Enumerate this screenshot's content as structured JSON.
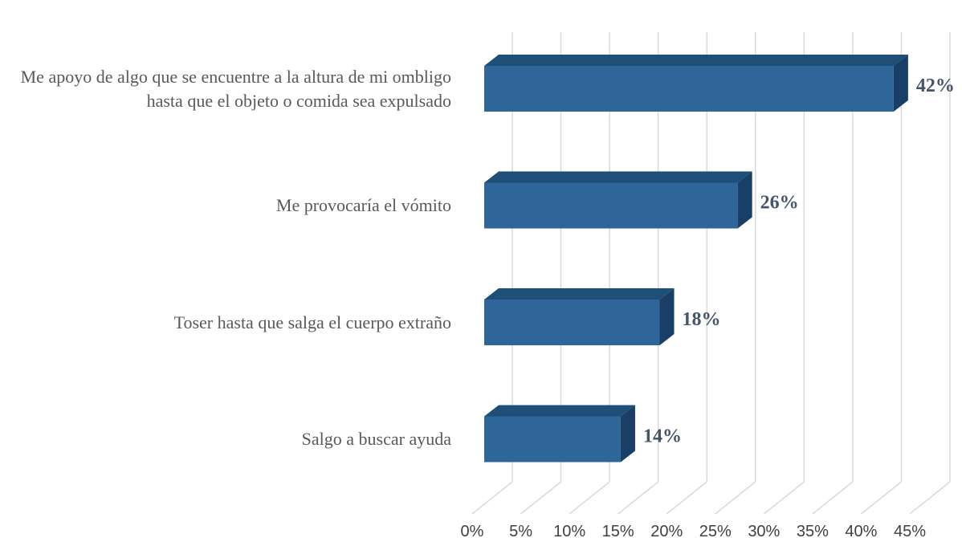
{
  "chart_data": {
    "type": "bar3d_horizontal",
    "categories": [
      "Me apoyo de algo que se encuentre a la altura de mi ombligo hasta que el objeto o comida sea expulsado",
      "Me provocaría el vómito",
      "Toser hasta que salga el cuerpo extraño",
      "Salgo a buscar ayuda"
    ],
    "values": [
      42,
      26,
      18,
      14
    ],
    "value_labels": [
      "42%",
      "26%",
      "18%",
      "14%"
    ],
    "color": "#2e6699",
    "xlim": [
      0,
      45
    ],
    "xticks": [
      {
        "value": 0,
        "label": "0%"
      },
      {
        "value": 5,
        "label": "5%"
      },
      {
        "value": 10,
        "label": "10%"
      },
      {
        "value": 15,
        "label": "15%"
      },
      {
        "value": 20,
        "label": "20%"
      },
      {
        "value": 25,
        "label": "25%"
      },
      {
        "value": 30,
        "label": "30%"
      },
      {
        "value": 35,
        "label": "35%"
      },
      {
        "value": 40,
        "label": "40%"
      },
      {
        "value": 45,
        "label": "45%"
      }
    ],
    "grid": true
  }
}
